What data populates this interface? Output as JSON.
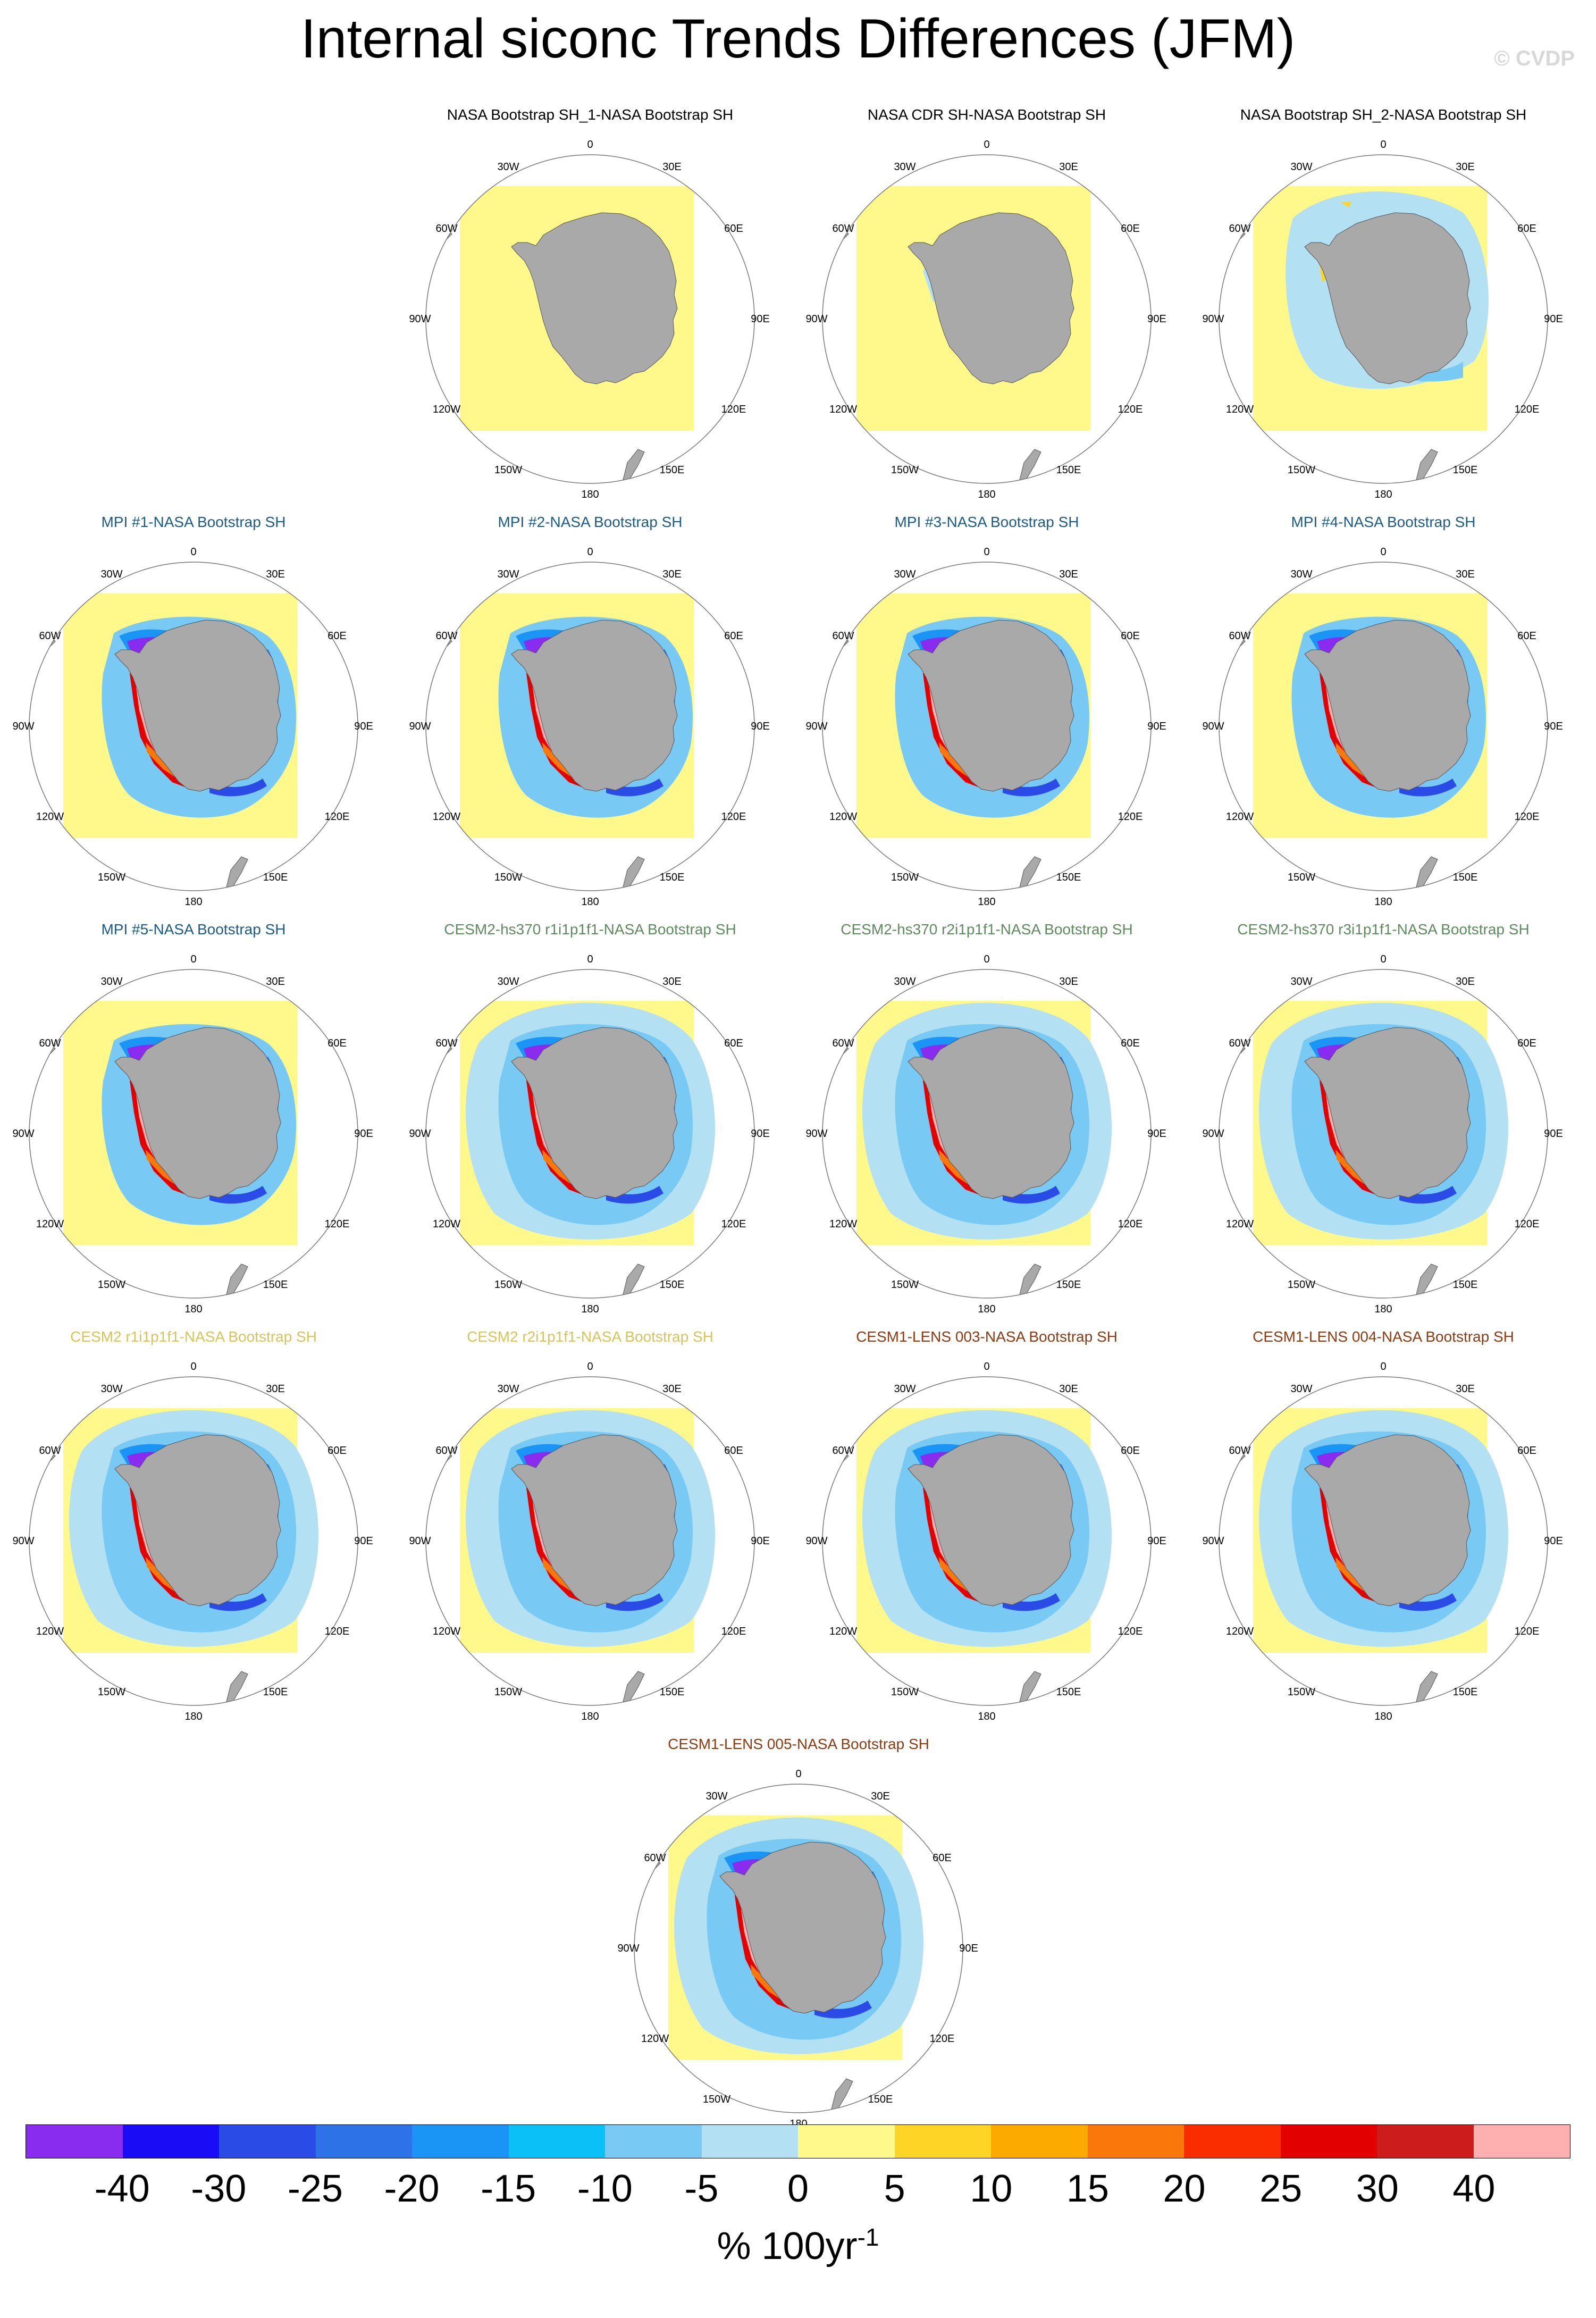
{
  "title": "Internal siconc Trends Differences (JFM)",
  "watermark": "© CVDP",
  "title_colors": {
    "obs": "#000000",
    "mpi": "#1c5b85",
    "cesm2hs": "#5e8a5e",
    "cesm2": "#d4c45a",
    "lens": "#8b3a12"
  },
  "panels": [
    {
      "title": "NASA Bootstrap SH_1-NASA Bootstrap SH",
      "group": "obs",
      "pattern": "zero"
    },
    {
      "title": "NASA CDR SH-NASA Bootstrap SH",
      "group": "obs",
      "pattern": "cdr"
    },
    {
      "title": "NASA Bootstrap SH_2-NASA Bootstrap SH",
      "group": "obs",
      "pattern": "bs2"
    },
    {
      "title": "MPI #1-NASA Bootstrap SH",
      "group": "mpi",
      "pattern": "model"
    },
    {
      "title": "MPI #2-NASA Bootstrap SH",
      "group": "mpi",
      "pattern": "model"
    },
    {
      "title": "MPI #3-NASA Bootstrap SH",
      "group": "mpi",
      "pattern": "model"
    },
    {
      "title": "MPI #4-NASA Bootstrap SH",
      "group": "mpi",
      "pattern": "model"
    },
    {
      "title": "MPI #5-NASA Bootstrap SH",
      "group": "mpi",
      "pattern": "model"
    },
    {
      "title": "CESM2-hs370 r1i1p1f1-NASA Bootstrap SH",
      "group": "cesm2hs",
      "pattern": "wide"
    },
    {
      "title": "CESM2-hs370 r2i1p1f1-NASA Bootstrap SH",
      "group": "cesm2hs",
      "pattern": "wide"
    },
    {
      "title": "CESM2-hs370 r3i1p1f1-NASA Bootstrap SH",
      "group": "cesm2hs",
      "pattern": "wide"
    },
    {
      "title": "CESM2 r1i1p1f1-NASA Bootstrap SH",
      "group": "cesm2",
      "pattern": "wide"
    },
    {
      "title": "CESM2 r2i1p1f1-NASA Bootstrap SH",
      "group": "cesm2",
      "pattern": "wide"
    },
    {
      "title": "CESM1-LENS 003-NASA Bootstrap SH",
      "group": "lens",
      "pattern": "wide"
    },
    {
      "title": "CESM1-LENS 004-NASA Bootstrap SH",
      "group": "lens",
      "pattern": "wide"
    },
    {
      "title": "CESM1-LENS 005-NASA Bootstrap SH",
      "group": "lens",
      "pattern": "wide"
    }
  ],
  "map_labels": {
    "lon_top": "0",
    "lon_bottom": "180",
    "l30w": "30W",
    "l30e": "30E",
    "l60w": "60W",
    "l60e": "60E",
    "l90w": "90W",
    "l90e": "90E",
    "l120w": "120W",
    "l120e": "120E",
    "l150w": "150W",
    "l150e": "150E"
  },
  "chart_data": {
    "type": "heatmap",
    "description_title": "Internal siconc Trends Differences (JFM)",
    "units": "% 100yr-1",
    "colorbar": {
      "tick_labels": [
        "-40",
        "-30",
        "-25",
        "-20",
        "-15",
        "-10",
        "-5",
        "0",
        "5",
        "10",
        "15",
        "20",
        "25",
        "30",
        "40"
      ],
      "colors": [
        "#8a2cf0",
        "#1a0cf5",
        "#2a4be6",
        "#2d72e6",
        "#1a94f5",
        "#0ac0f7",
        "#78c9f3",
        "#b3e0f2",
        "#fff98c",
        "#fed527",
        "#fcaa00",
        "#fa780b",
        "#f92d00",
        "#e20000",
        "#cc1c1c",
        "#feafaf"
      ]
    },
    "projection": "South polar stereographic",
    "longitude_labels": [
      "0",
      "30E",
      "60E",
      "90E",
      "120E",
      "150E",
      "180",
      "150W",
      "120W",
      "90W",
      "60W",
      "30W"
    ]
  }
}
